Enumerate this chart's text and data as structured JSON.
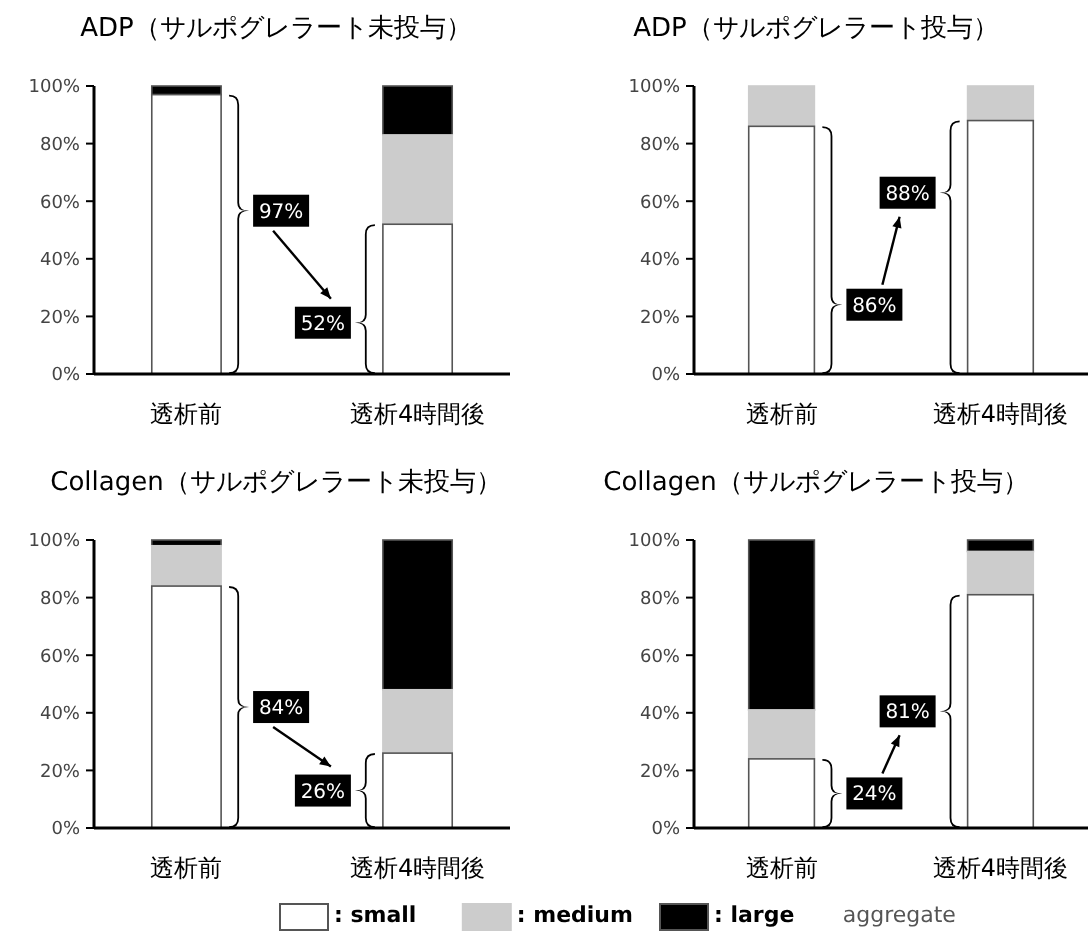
{
  "chart_data": [
    {
      "type": "bar",
      "stacked": true,
      "title": "ADP（サルポグレラート未投与）",
      "categories": [
        "透析前",
        "透析4時間後"
      ],
      "ylim": [
        0,
        100
      ],
      "yticks": [
        {
          "value": 0,
          "label": "0%"
        },
        {
          "value": 20,
          "label": "20%"
        },
        {
          "value": 40,
          "label": "40%"
        },
        {
          "value": 60,
          "label": "60%"
        },
        {
          "value": 80,
          "label": "80%"
        },
        {
          "value": 100,
          "label": "100%"
        }
      ],
      "legend": "bottom",
      "legend_title": "aggregate",
      "annotations": [
        "97%",
        "52%"
      ],
      "series": [
        {
          "name": ": small",
          "color": "#ffffff",
          "values": [
            97,
            52
          ]
        },
        {
          "name": ": medium",
          "color": "#cccccc",
          "values": [
            0,
            31
          ]
        },
        {
          "name": ": large",
          "color": "#000000",
          "values": [
            3,
            17
          ]
        }
      ]
    },
    {
      "type": "bar",
      "stacked": true,
      "title": "ADP（サルポグレラート投与）",
      "categories": [
        "透析前",
        "透析4時間後"
      ],
      "ylim": [
        0,
        100
      ],
      "yticks": [
        {
          "value": 0,
          "label": "0%"
        },
        {
          "value": 20,
          "label": "20%"
        },
        {
          "value": 40,
          "label": "40%"
        },
        {
          "value": 60,
          "label": "60%"
        },
        {
          "value": 80,
          "label": "80%"
        },
        {
          "value": 100,
          "label": "100%"
        }
      ],
      "annotations": [
        "86%",
        "88%"
      ],
      "series": [
        {
          "color": "#ffffff",
          "values": [
            86,
            88
          ]
        },
        {
          "color": "#cccccc",
          "values": [
            14,
            12
          ]
        },
        {
          "color": "#000000",
          "values": [
            0,
            0
          ]
        }
      ]
    },
    {
      "type": "bar",
      "stacked": true,
      "title": "Collagen（サルポグレラート未投与）",
      "categories": [
        "透析前",
        "透析4時間後"
      ],
      "ylim": [
        0,
        100
      ],
      "yticks": [
        {
          "value": 0,
          "label": "0%"
        },
        {
          "value": 20,
          "label": "20%"
        },
        {
          "value": 40,
          "label": "40%"
        },
        {
          "value": 60,
          "label": "60%"
        },
        {
          "value": 80,
          "label": "80%"
        },
        {
          "value": 100,
          "label": "100%"
        }
      ],
      "annotations": [
        "84%",
        "26%"
      ],
      "series": [
        {
          "color": "#ffffff",
          "values": [
            84,
            26
          ]
        },
        {
          "color": "#cccccc",
          "values": [
            14,
            22
          ]
        },
        {
          "color": "#000000",
          "values": [
            2,
            52
          ]
        }
      ]
    },
    {
      "type": "bar",
      "stacked": true,
      "title": "Collagen（サルポグレラート投与）",
      "categories": [
        "透析前",
        "透析4時間後"
      ],
      "ylim": [
        0,
        100
      ],
      "yticks": [
        {
          "value": 0,
          "label": "0%"
        },
        {
          "value": 20,
          "label": "20%"
        },
        {
          "value": 40,
          "label": "40%"
        },
        {
          "value": 60,
          "label": "60%"
        },
        {
          "value": 80,
          "label": "80%"
        },
        {
          "value": 100,
          "label": "100%"
        }
      ],
      "annotations": [
        "24%",
        "81%"
      ],
      "series": [
        {
          "color": "#ffffff",
          "values": [
            24,
            81
          ]
        },
        {
          "color": "#cccccc",
          "values": [
            17,
            15
          ]
        },
        {
          "color": "#000000",
          "values": [
            59,
            4
          ]
        }
      ]
    }
  ]
}
